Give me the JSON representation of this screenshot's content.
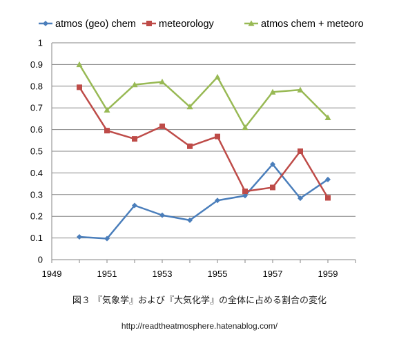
{
  "chart_data": {
    "type": "line",
    "x": [
      1950,
      1951,
      1952,
      1953,
      1954,
      1955,
      1956,
      1957,
      1958,
      1959
    ],
    "series": [
      {
        "name": "atmos (geo) chem",
        "color": "#4a7ebb",
        "marker": "diamond",
        "values": [
          0.105,
          0.097,
          0.25,
          0.205,
          0.182,
          0.273,
          0.295,
          0.44,
          0.283,
          0.37
        ]
      },
      {
        "name": "meteorology",
        "color": "#be4b48",
        "marker": "square",
        "values": [
          0.795,
          0.595,
          0.557,
          0.615,
          0.523,
          0.568,
          0.315,
          0.333,
          0.5,
          0.285
        ]
      },
      {
        "name": "atmos chem + meteoro",
        "color": "#98b954",
        "marker": "triangle",
        "values": [
          0.9,
          0.69,
          0.807,
          0.82,
          0.705,
          0.842,
          0.61,
          0.773,
          0.783,
          0.655
        ]
      }
    ],
    "xlim": [
      1949,
      1960
    ],
    "ylim": [
      0,
      1
    ],
    "xticks": [
      "1949",
      "1951",
      "1953",
      "1955",
      "1957",
      "1959"
    ],
    "yticks": [
      "0",
      "0.1",
      "0.2",
      "0.3",
      "0.4",
      "0.5",
      "0.6",
      "0.7",
      "0.8",
      "0.9",
      "1"
    ],
    "grid": true,
    "legend_position": "top"
  },
  "caption": "図３ 『気象学』および『大気化学』の全体に占める割合の変化",
  "url": "http://readtheatmosphere.hatenablog.com/"
}
